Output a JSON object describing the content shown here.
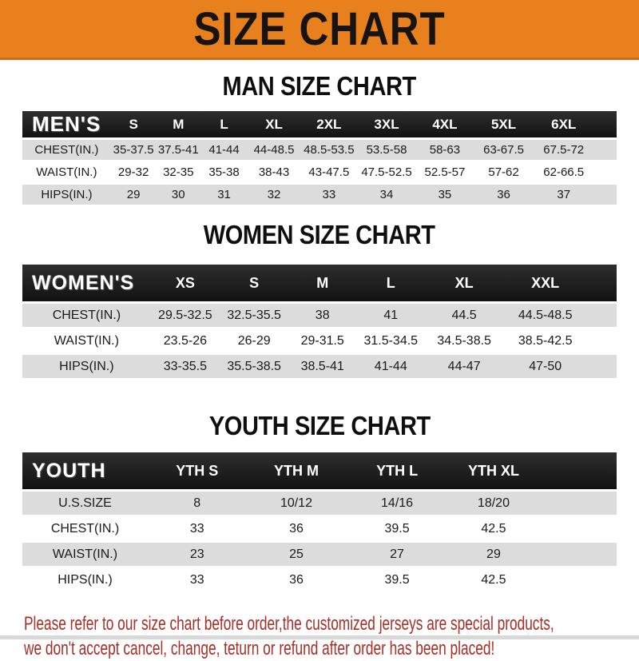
{
  "colors": {
    "banner_bg": "#e8811d",
    "banner_edge": "#ce6c10",
    "table_header_bg": "#1c1c1c",
    "row_stripe": "#dcdcdc",
    "disclaimer_red": "#a82e26"
  },
  "banner": {
    "title": "SIZE CHART"
  },
  "sections": [
    {
      "heading": "MAN SIZE CHART",
      "table": {
        "label": "MEN'S",
        "columns": [
          "S",
          "M",
          "L",
          "XL",
          "2XL",
          "3XL",
          "4XL",
          "5XL",
          "6XL"
        ],
        "rows": [
          {
            "label": "CHEST(IN.)",
            "values": [
              "35-37.5",
              "37.5-41",
              "41-44",
              "44-48.5",
              "48.5-53.5",
              "53.5-58",
              "58-63",
              "63-67.5",
              "67.5-72"
            ]
          },
          {
            "label": "WAIST(IN.)",
            "values": [
              "29-32",
              "32-35",
              "35-38",
              "38-43",
              "43-47.5",
              "47.5-52.5",
              "52.5-57",
              "57-62",
              "62-66.5"
            ]
          },
          {
            "label": "HIPS(IN.)",
            "values": [
              "29",
              "30",
              "31",
              "32",
              "33",
              "34",
              "35",
              "36",
              "37"
            ]
          }
        ]
      }
    },
    {
      "heading": "WOMEN SIZE CHART",
      "table": {
        "label": "WOMEN'S",
        "columns": [
          "XS",
          "S",
          "M",
          "L",
          "XL",
          "XXL"
        ],
        "rows": [
          {
            "label": "CHEST(IN.)",
            "values": [
              "29.5-32.5",
              "32.5-35.5",
              "38",
              "41",
              "44.5",
              "44.5-48.5"
            ]
          },
          {
            "label": "WAIST(IN.)",
            "values": [
              "23.5-26",
              "26-29",
              "29-31.5",
              "31.5-34.5",
              "34.5-38.5",
              "38.5-42.5"
            ]
          },
          {
            "label": "HIPS(IN.)",
            "values": [
              "33-35.5",
              "35.5-38.5",
              "38.5-41",
              "41-44",
              "44-47",
              "47-50"
            ]
          }
        ]
      }
    },
    {
      "heading": "YOUTH SIZE CHART",
      "table": {
        "label": "YOUTH",
        "columns": [
          "YTH S",
          "YTH M",
          "YTH L",
          "YTH XL"
        ],
        "rows": [
          {
            "label": "U.S.SIZE",
            "values": [
              "8",
              "10/12",
              "14/16",
              "18/20"
            ]
          },
          {
            "label": "CHEST(IN.)",
            "values": [
              "33",
              "36",
              "39.5",
              "42.5"
            ]
          },
          {
            "label": "WAIST(IN.)",
            "values": [
              "23",
              "25",
              "27",
              "29"
            ]
          },
          {
            "label": "HIPS(IN.)",
            "values": [
              "33",
              "36",
              "39.5",
              "42.5"
            ]
          }
        ]
      }
    }
  ],
  "disclaimer": {
    "line1": "Please refer to our size chart before order,the customized jerseys are special products,",
    "line2": "we don't accept cancel, change, teturn or refund after order has been placed!"
  }
}
